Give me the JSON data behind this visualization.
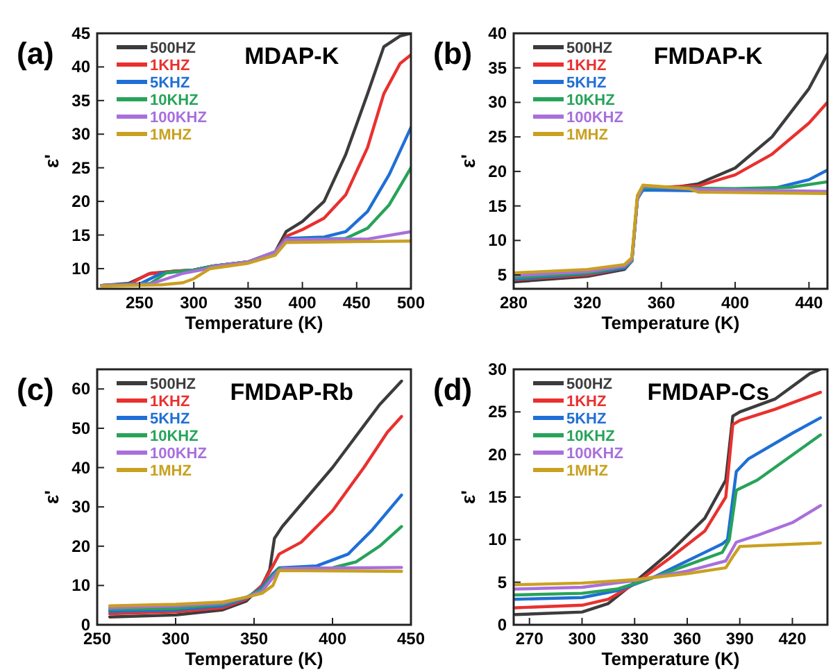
{
  "chart_data": [
    {
      "type": "line",
      "title": "MDAP-K",
      "annotations": [
        "(a)"
      ],
      "xlabel": "Temperature (K)",
      "ylabel": "ε'",
      "legend": "top left",
      "xlim": [
        211,
        500
      ],
      "ylim": [
        7,
        45
      ],
      "xticks": [
        250,
        300,
        350,
        400,
        450,
        500
      ],
      "yticks": [
        10,
        15,
        20,
        25,
        30,
        35,
        40,
        45
      ],
      "series": [
        {
          "name": "500HZ",
          "color": "#3c3c3c",
          "x": [
            215,
            240,
            260,
            280,
            300,
            318,
            350,
            375,
            385,
            400,
            420,
            440,
            460,
            475,
            490,
            500
          ],
          "values": [
            7.5,
            7.8,
            9.3,
            9.6,
            9.8,
            10.4,
            11,
            12.5,
            15.5,
            17,
            20,
            27,
            36,
            43,
            44.6,
            45
          ]
        },
        {
          "name": "1KHZ",
          "color": "#e8312f",
          "x": [
            215,
            240,
            258,
            280,
            300,
            318,
            350,
            375,
            385,
            400,
            420,
            440,
            460,
            475,
            490,
            500
          ],
          "values": [
            7.5,
            7.6,
            9.2,
            9.6,
            9.8,
            10.4,
            11,
            12.5,
            14.8,
            15.8,
            17.5,
            21,
            28,
            36,
            40.5,
            41.8
          ]
        },
        {
          "name": "5KHZ",
          "color": "#1f6fd6",
          "x": [
            215,
            250,
            270,
            300,
            318,
            350,
            375,
            385,
            420,
            440,
            460,
            480,
            500
          ],
          "values": [
            7.5,
            7.7,
            9.3,
            9.8,
            10.4,
            11,
            12.5,
            14.5,
            14.7,
            15.5,
            18.5,
            24,
            31
          ]
        },
        {
          "name": "10KHZ",
          "color": "#27a35a",
          "x": [
            215,
            260,
            275,
            300,
            318,
            350,
            375,
            385,
            440,
            460,
            480,
            500
          ],
          "values": [
            7.5,
            7.8,
            9.4,
            9.8,
            10.4,
            11,
            12.5,
            14.3,
            14.5,
            16,
            19.5,
            25
          ]
        },
        {
          "name": "100KHZ",
          "color": "#a86fdc",
          "x": [
            215,
            260,
            290,
            310,
            318,
            350,
            375,
            385,
            460,
            500
          ],
          "values": [
            7.5,
            7.7,
            9.3,
            9.9,
            10.3,
            11,
            12.5,
            14.3,
            14.4,
            15.5
          ]
        },
        {
          "name": "1MHZ",
          "color": "#c9a020",
          "x": [
            215,
            270,
            290,
            300,
            315,
            350,
            375,
            385,
            500
          ],
          "values": [
            7.4,
            7.6,
            7.9,
            8.5,
            10,
            10.8,
            12,
            13.9,
            14.1
          ]
        }
      ]
    },
    {
      "type": "line",
      "title": "FMDAP-K",
      "annotations": [
        "(b)"
      ],
      "xlabel": "Temperature (K)",
      "ylabel": "ε'",
      "legend": "top left",
      "xlim": [
        280,
        450
      ],
      "ylim": [
        3,
        40
      ],
      "xticks": [
        280,
        320,
        360,
        400,
        440
      ],
      "yticks": [
        5,
        10,
        15,
        20,
        25,
        30,
        35,
        40
      ],
      "series": [
        {
          "name": "500HZ",
          "color": "#3c3c3c",
          "x": [
            280,
            320,
            340,
            344,
            347,
            350,
            370,
            380,
            400,
            420,
            440,
            450
          ],
          "values": [
            4,
            4.8,
            5.8,
            7,
            16,
            17.5,
            17.8,
            18.2,
            20.5,
            25,
            32,
            37
          ]
        },
        {
          "name": "1KHZ",
          "color": "#e8312f",
          "x": [
            280,
            320,
            340,
            344,
            347,
            350,
            380,
            400,
            420,
            440,
            450
          ],
          "values": [
            4.3,
            5,
            6,
            7,
            16,
            17.6,
            17.9,
            19.5,
            22.5,
            27,
            30
          ]
        },
        {
          "name": "5KHZ",
          "color": "#1f6fd6",
          "x": [
            280,
            320,
            340,
            344,
            347,
            350,
            380,
            420,
            440,
            450
          ],
          "values": [
            4.4,
            5.2,
            6,
            7,
            16,
            17.3,
            17.2,
            17.5,
            18.8,
            20.2
          ]
        },
        {
          "name": "10KHZ",
          "color": "#27a35a",
          "x": [
            280,
            320,
            340,
            344,
            347,
            350,
            400,
            430,
            450
          ],
          "values": [
            4.6,
            5.3,
            6.2,
            7,
            16,
            17.7,
            17.5,
            17.7,
            18.5
          ]
        },
        {
          "name": "100KHZ",
          "color": "#a86fdc",
          "x": [
            280,
            320,
            340,
            344,
            347,
            350,
            380,
            450
          ],
          "values": [
            4.9,
            5.5,
            6.3,
            7.2,
            16,
            17.9,
            17.4,
            17.1
          ]
        },
        {
          "name": "1MHZ",
          "color": "#c9a020",
          "x": [
            280,
            320,
            340,
            344,
            347,
            350,
            375,
            380,
            450
          ],
          "values": [
            5.3,
            5.8,
            6.5,
            7.5,
            16.5,
            18,
            17.5,
            17,
            16.8
          ]
        }
      ]
    },
    {
      "type": "line",
      "title": "FMDAP-Rb",
      "annotations": [
        "(c)"
      ],
      "xlabel": "Temperature (K)",
      "ylabel": "ε'",
      "legend": "top left",
      "xlim": [
        250,
        450
      ],
      "ylim": [
        0,
        65
      ],
      "xticks": [
        250,
        300,
        350,
        400,
        450
      ],
      "yticks": [
        0,
        10,
        20,
        30,
        40,
        50,
        60
      ],
      "series": [
        {
          "name": "500HZ",
          "color": "#3c3c3c",
          "x": [
            258,
            300,
            330,
            345,
            355,
            360,
            363,
            368,
            400,
            430,
            444
          ],
          "values": [
            2,
            2.5,
            3.8,
            6,
            10,
            14,
            22,
            25,
            40,
            56,
            62
          ]
        },
        {
          "name": "1KHZ",
          "color": "#e8312f",
          "x": [
            258,
            300,
            330,
            345,
            355,
            362,
            366,
            380,
            400,
            420,
            435,
            444
          ],
          "values": [
            2.8,
            3.3,
            4.3,
            6.5,
            10,
            15,
            18,
            21,
            29,
            40,
            49,
            53
          ]
        },
        {
          "name": "5KHZ",
          "color": "#1f6fd6",
          "x": [
            258,
            300,
            330,
            345,
            355,
            362,
            366,
            390,
            410,
            425,
            444
          ],
          "values": [
            3.4,
            3.8,
            4.8,
            6.8,
            9.5,
            13,
            14.5,
            15,
            18,
            24,
            33
          ]
        },
        {
          "name": "10KHZ",
          "color": "#27a35a",
          "x": [
            258,
            300,
            330,
            345,
            355,
            362,
            366,
            400,
            415,
            430,
            444
          ],
          "values": [
            3.9,
            4.2,
            5.2,
            7,
            9,
            12.5,
            14.3,
            14.5,
            16,
            20,
            25
          ]
        },
        {
          "name": "100KHZ",
          "color": "#a86fdc",
          "x": [
            258,
            300,
            330,
            345,
            355,
            365,
            368,
            444
          ],
          "values": [
            4.3,
            4.8,
            5.5,
            7,
            8.5,
            13.5,
            14.3,
            14.6
          ]
        },
        {
          "name": "1MHZ",
          "color": "#c9a020",
          "x": [
            258,
            300,
            330,
            345,
            355,
            362,
            366,
            444
          ],
          "values": [
            4.8,
            5.2,
            5.8,
            7,
            8,
            10,
            13.8,
            13.6
          ]
        }
      ]
    },
    {
      "type": "line",
      "title": "FMDAP-Cs",
      "annotations": [
        "(d)"
      ],
      "xlabel": "Temperature (K)",
      "ylabel": "ε'",
      "legend": "top left",
      "xlim": [
        261,
        440
      ],
      "ylim": [
        0,
        30
      ],
      "xticks": [
        270,
        300,
        330,
        360,
        390,
        420
      ],
      "yticks": [
        0,
        5,
        10,
        15,
        20,
        25,
        30
      ],
      "series": [
        {
          "name": "500HZ",
          "color": "#3c3c3c",
          "x": [
            262,
            300,
            315,
            330,
            350,
            370,
            382,
            386,
            390,
            410,
            430,
            436
          ],
          "values": [
            1.2,
            1.5,
            2.5,
            5,
            8.5,
            12.5,
            17,
            24.5,
            25,
            26.5,
            29.5,
            30
          ]
        },
        {
          "name": "1KHZ",
          "color": "#e8312f",
          "x": [
            262,
            300,
            315,
            330,
            350,
            370,
            382,
            386,
            390,
            410,
            436
          ],
          "values": [
            2,
            2.3,
            3,
            4.8,
            7.8,
            11,
            15,
            23.5,
            24,
            25.3,
            27.3
          ]
        },
        {
          "name": "5KHZ",
          "color": "#1f6fd6",
          "x": [
            262,
            300,
            320,
            340,
            360,
            380,
            383,
            388,
            395,
            420,
            436
          ],
          "values": [
            3,
            3.2,
            4,
            5.5,
            7.5,
            9.5,
            10,
            18,
            19.5,
            22.5,
            24.3
          ]
        },
        {
          "name": "10KHZ",
          "color": "#27a35a",
          "x": [
            262,
            300,
            320,
            340,
            360,
            380,
            384,
            388,
            400,
            436
          ],
          "values": [
            3.5,
            3.7,
            4.2,
            5.5,
            7,
            8.5,
            10,
            15.8,
            17,
            22.3
          ]
        },
        {
          "name": "100KHZ",
          "color": "#a86fdc",
          "x": [
            262,
            300,
            330,
            360,
            382,
            388,
            400,
            420,
            436
          ],
          "values": [
            4.2,
            4.4,
            5.2,
            6.3,
            7.5,
            9.7,
            10.5,
            12,
            14
          ]
        },
        {
          "name": "1MHZ",
          "color": "#c9a020",
          "x": [
            262,
            300,
            330,
            360,
            382,
            386,
            390,
            436
          ],
          "values": [
            4.7,
            4.9,
            5.3,
            6,
            6.7,
            8,
            9.2,
            9.6
          ]
        }
      ]
    }
  ]
}
